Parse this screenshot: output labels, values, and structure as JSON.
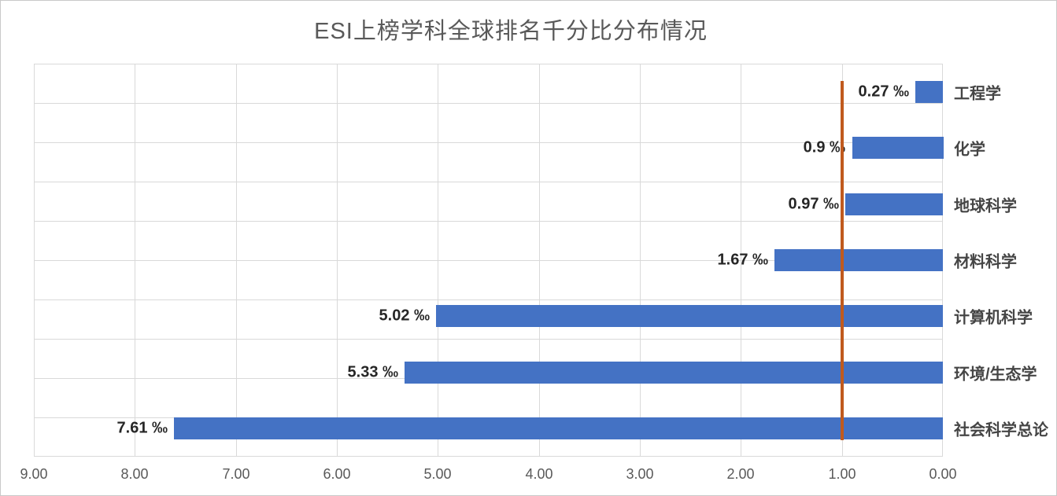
{
  "chart_data": {
    "type": "bar",
    "orientation": "horizontal",
    "title": "ESI上榜学科全球排名千分比分布情况",
    "categories": [
      "工程学",
      "化学",
      "地球科学",
      "材料科学",
      "计算机科学",
      "环境/生态学",
      "社会科学总论"
    ],
    "values": [
      0.27,
      0.9,
      0.97,
      1.67,
      5.02,
      5.33,
      7.61
    ],
    "data_labels": [
      "0.27 ‰",
      "0.9 ‰",
      "0.97 ‰",
      "1.67 ‰",
      "5.02 ‰",
      "5.33 ‰",
      "7.61 ‰"
    ],
    "xlabel": "",
    "ylabel": "",
    "x_axis": {
      "min": 0,
      "max": 9,
      "step": 1,
      "reversed": true,
      "tick_labels": [
        "9.00",
        "8.00",
        "7.00",
        "6.00",
        "5.00",
        "4.00",
        "3.00",
        "2.00",
        "1.00",
        "0.00"
      ]
    },
    "reference_line": {
      "value": 1.0,
      "color": "#C05A1E"
    },
    "legend": "none",
    "grid": {
      "vertical_at_ticks": true,
      "horizontal_rows": 10
    },
    "colors": {
      "bar": "#4472C4",
      "gridline": "#D9D9D9",
      "title_text": "#595959",
      "axis_text": "#595959",
      "data_label_text": "#262626",
      "category_text": "#454545",
      "frame_border": "#C9C9C9"
    }
  }
}
